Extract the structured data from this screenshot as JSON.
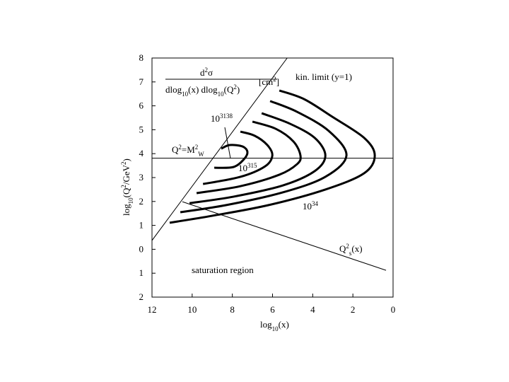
{
  "chart_data": {
    "type": "line",
    "xlabel": [
      {
        "text": "log"
      },
      {
        "text": "10",
        "shift": "sub"
      },
      {
        "text": "(x)"
      }
    ],
    "ylabel": [
      {
        "text": "log"
      },
      {
        "text": "10",
        "shift": "sub"
      },
      {
        "text": "(Q"
      },
      {
        "text": "2",
        "shift": "super"
      },
      {
        "text": "/GeV"
      },
      {
        "text": "2",
        "shift": "super"
      },
      {
        "text": ")"
      }
    ],
    "formula": {
      "numerator": [
        {
          "text": "d"
        },
        {
          "text": "2",
          "shift": "super"
        },
        {
          "text": "σ"
        }
      ],
      "denominator": [
        {
          "text": "dlog"
        },
        {
          "text": "10",
          "shift": "sub"
        },
        {
          "text": "(x) dlog"
        },
        {
          "text": "10",
          "shift": "sub"
        },
        {
          "text": "(Q"
        },
        {
          "text": "2",
          "shift": "super"
        },
        {
          "text": ")"
        }
      ],
      "unit": [
        {
          "text": "[cm"
        },
        {
          "text": "2",
          "shift": "super"
        },
        {
          "text": "]"
        }
      ]
    },
    "annotations": [
      [
        {
          "text": "kin. limit (y=1)"
        }
      ],
      [
        {
          "text": "10"
        },
        {
          "text": "3138",
          "shift": "super"
        }
      ],
      [
        {
          "text": "Q"
        },
        {
          "text": "2",
          "shift": "super"
        },
        {
          "text": "=M"
        },
        {
          "text": "2",
          "shift": "super"
        },
        {
          "text": "W",
          "shift": "sub"
        }
      ],
      [
        {
          "text": "10"
        },
        {
          "text": "315",
          "shift": "super"
        }
      ],
      [
        {
          "text": "10"
        },
        {
          "text": "34",
          "shift": "super"
        }
      ],
      [
        {
          "text": "Q"
        },
        {
          "text": "2",
          "shift": "super"
        },
        {
          "text": "s",
          "shift": "sub"
        },
        {
          "text": "(x)"
        }
      ],
      [
        {
          "text": "saturation region"
        }
      ]
    ],
    "xlim": [
      12,
      0
    ],
    "ylim": [
      -2,
      8
    ],
    "xticks": [
      12,
      10,
      8,
      6,
      4,
      2,
      0
    ],
    "yticks": [
      {
        "value": -2,
        "label": "2"
      },
      {
        "value": -1,
        "label": "1"
      },
      0,
      1,
      2,
      3,
      4,
      5,
      6,
      7,
      8
    ],
    "series": [
      {
        "color": "#000000",
        "width": 1,
        "x": [
          12,
          5.27
        ],
        "values": [
          0.37,
          8
        ]
      },
      {
        "color": "#000000",
        "width": 1,
        "x": [
          12,
          0
        ],
        "values": [
          3.81,
          3.81
        ]
      },
      {
        "color": "#000000",
        "width": 1,
        "x": [
          10.49,
          0.35
        ],
        "values": [
          1.99,
          -0.88
        ]
      },
      {
        "color": "#000000",
        "width": 3,
        "x": [
          11.12,
          9.01,
          6.19,
          3.37,
          1.44,
          0.91,
          1.44,
          3.02,
          4.43,
          5.66
        ],
        "values": [
          1.11,
          1.4,
          1.85,
          2.5,
          3.18,
          3.92,
          4.66,
          5.54,
          6.28,
          6.64
        ]
      },
      {
        "color": "#000000",
        "width": 3,
        "x": [
          10.59,
          8.3,
          5.49,
          3.37,
          2.32,
          3.2,
          4.78,
          6.12
        ],
        "values": [
          1.55,
          1.85,
          2.38,
          3.03,
          3.92,
          4.95,
          5.75,
          6.2
        ]
      },
      {
        "color": "#000000",
        "width": 3,
        "x": [
          10.13,
          7.95,
          5.49,
          3.9,
          3.37,
          3.9,
          5.13,
          6.54
        ],
        "values": [
          1.93,
          2.2,
          2.67,
          3.27,
          3.92,
          4.66,
          5.25,
          5.69
        ]
      },
      {
        "color": "#000000",
        "width": 3,
        "x": [
          9.78,
          7.6,
          5.66,
          4.78,
          4.61,
          4.96,
          5.84,
          7.0
        ],
        "values": [
          2.35,
          2.64,
          3.12,
          3.56,
          3.92,
          4.51,
          5.04,
          5.34
        ]
      },
      {
        "color": "#000000",
        "width": 3,
        "x": [
          9.46,
          7.6,
          6.37,
          6.01,
          6.26,
          6.89,
          7.6
        ],
        "values": [
          2.73,
          3.03,
          3.47,
          3.92,
          4.36,
          4.75,
          4.92
        ]
      },
      {
        "color": "#000000",
        "width": 3,
        "x": [
          8.9,
          7.95,
          7.42,
          7.25,
          7.49,
          8.13,
          8.55
        ],
        "values": [
          3.41,
          3.44,
          3.77,
          4.07,
          4.3,
          4.36,
          4.21
        ]
      }
    ]
  }
}
